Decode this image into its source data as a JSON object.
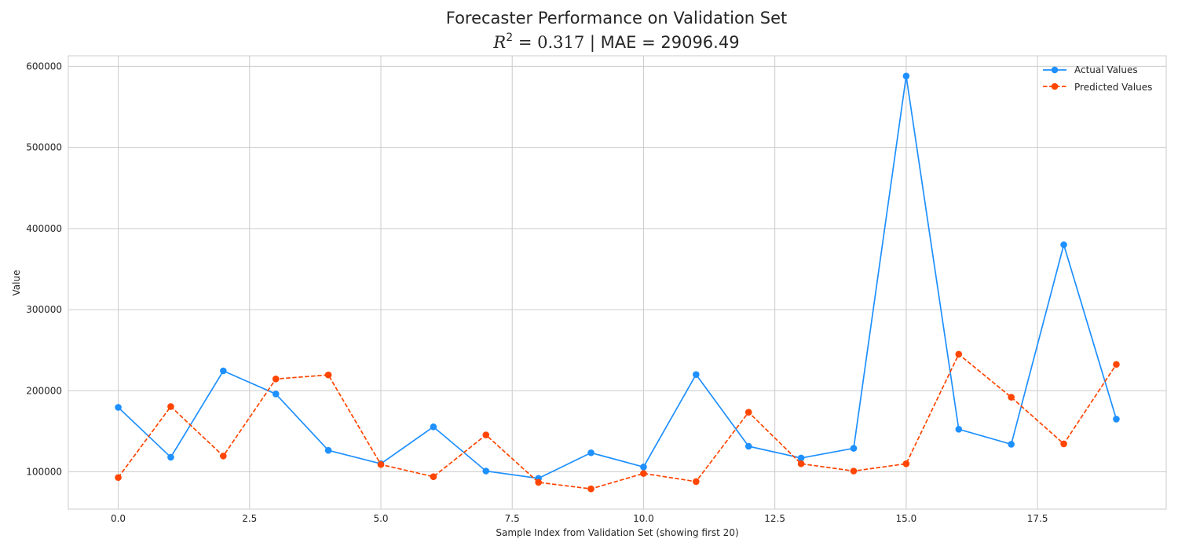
{
  "chart_data": {
    "type": "line",
    "title": "Forecaster Performance on Validation Set",
    "subtitle_r2_symbol": "R",
    "subtitle_r2_exponent": "2",
    "subtitle_r2_value": " = 0.317",
    "subtitle_rest": " | MAE = 29096.49",
    "xlabel": "Sample Index from Validation Set (showing first 20)",
    "ylabel": "Value",
    "xlim": [
      -0.95,
      19.95
    ],
    "ylim": [
      54000,
      613000
    ],
    "xticks": [
      0.0,
      2.5,
      5.0,
      7.5,
      10.0,
      12.5,
      15.0,
      17.5
    ],
    "xtick_labels": [
      "0.0",
      "2.5",
      "5.0",
      "7.5",
      "10.0",
      "12.5",
      "15.0",
      "17.5"
    ],
    "yticks": [
      100000,
      200000,
      300000,
      400000,
      500000,
      600000
    ],
    "ytick_labels": [
      "100000",
      "200000",
      "300000",
      "400000",
      "500000",
      "600000"
    ],
    "grid": true,
    "legend_position": "top-right",
    "x": [
      0,
      1,
      2,
      3,
      4,
      5,
      6,
      7,
      8,
      9,
      10,
      11,
      12,
      13,
      14,
      15,
      16,
      17,
      18,
      19
    ],
    "series": [
      {
        "name": "Actual Values",
        "color": "#1e90ff",
        "linestyle": "solid",
        "marker": "circle",
        "values": [
          179500,
          118000,
          224500,
          196000,
          126500,
          110000,
          155500,
          101000,
          92000,
          123500,
          106000,
          220000,
          131500,
          117000,
          129000,
          588000,
          152500,
          134000,
          380000,
          165000
        ]
      },
      {
        "name": "Predicted Values",
        "color": "#ff4500",
        "linestyle": "dashed",
        "marker": "circle",
        "values": [
          93000,
          180500,
          119500,
          214500,
          219500,
          109000,
          94000,
          145500,
          87000,
          79000,
          98000,
          88000,
          173500,
          110000,
          101000,
          110000,
          245000,
          192000,
          134500,
          232500
        ]
      }
    ]
  }
}
